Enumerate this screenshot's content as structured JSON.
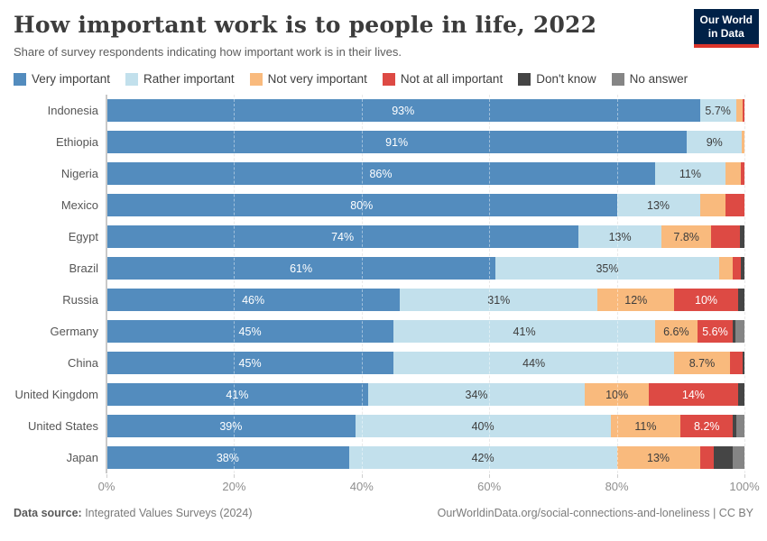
{
  "header": {
    "title": "How important work is to people in life, 2022",
    "subtitle": "Share of survey respondents indicating how important work is in their lives.",
    "logo": {
      "line1": "Our World",
      "line2": "in Data",
      "bg_color": "#002147",
      "accent_color": "#dc352b"
    }
  },
  "legend": {
    "items": [
      {
        "label": "Very important",
        "color": "#538cbe"
      },
      {
        "label": "Rather important",
        "color": "#c2e0ec"
      },
      {
        "label": "Not very important",
        "color": "#f9ba7d"
      },
      {
        "label": "Not at all important",
        "color": "#dd4a44"
      },
      {
        "label": "Don't know",
        "color": "#454545"
      },
      {
        "label": "No answer",
        "color": "#858585"
      }
    ]
  },
  "chart_data": {
    "type": "bar",
    "stacked": true,
    "orientation": "horizontal",
    "unit": "%",
    "xlim": [
      0,
      100
    ],
    "x_ticks": [
      "0%",
      "20%",
      "40%",
      "60%",
      "80%",
      "100%"
    ],
    "grid": "dashed-vertical",
    "legend_position": "top",
    "categories": [
      "Indonesia",
      "Ethiopia",
      "Nigeria",
      "Mexico",
      "Egypt",
      "Brazil",
      "Russia",
      "Germany",
      "China",
      "United Kingdom",
      "United States",
      "Japan"
    ],
    "series": [
      {
        "name": "Very important",
        "color": "#538cbe",
        "label_color": "#ffffff",
        "values": [
          93,
          91,
          86,
          80,
          74,
          61,
          46,
          45,
          45,
          41,
          39,
          38
        ],
        "labels": [
          "93%",
          "91%",
          "86%",
          "80%",
          "74%",
          "61%",
          "46%",
          "45%",
          "45%",
          "41%",
          "39%",
          "38%"
        ]
      },
      {
        "name": "Rather important",
        "color": "#c2e0ec",
        "label_color": "#3d3d3d",
        "values": [
          5.7,
          8.6,
          11,
          13,
          13,
          35,
          31,
          41,
          44,
          34,
          40,
          42
        ],
        "labels": [
          "5.7%",
          "9%",
          "11%",
          "13%",
          "13%",
          "35%",
          "31%",
          "41%",
          "44%",
          "34%",
          "40%",
          "42%"
        ]
      },
      {
        "name": "Not very important",
        "color": "#f9ba7d",
        "label_color": "#3d3d3d",
        "values": [
          1.0,
          0.4,
          2.4,
          4.0,
          7.8,
          2.1,
          12,
          6.6,
          8.7,
          10,
          11,
          13
        ],
        "labels": [
          "",
          "",
          "",
          "",
          "7.8%",
          "",
          "12%",
          "6.6%",
          "8.7%",
          "10%",
          "11%",
          "13%"
        ]
      },
      {
        "name": "Not at all important",
        "color": "#dd4a44",
        "label_color": "#ffffff",
        "values": [
          0.3,
          0,
          0.6,
          3.0,
          4.5,
          1.4,
          10,
          5.6,
          2.0,
          14,
          8.2,
          2.2
        ],
        "labels": [
          "",
          "",
          "",
          "",
          "",
          "",
          "10%",
          "5.6%",
          "",
          "14%",
          "8.2%",
          ""
        ]
      },
      {
        "name": "Don't know",
        "color": "#454545",
        "label_color": "#ffffff",
        "values": [
          0,
          0,
          0,
          0,
          0.7,
          0.5,
          1.0,
          0.4,
          0.3,
          1.0,
          0.6,
          3.0
        ],
        "labels": [
          "",
          "",
          "",
          "",
          "",
          "",
          "",
          "",
          "",
          "",
          "",
          ""
        ]
      },
      {
        "name": "No answer",
        "color": "#858585",
        "label_color": "#ffffff",
        "values": [
          0,
          0,
          0,
          0,
          0,
          0,
          0,
          1.4,
          0,
          0,
          1.2,
          1.8
        ],
        "labels": [
          "",
          "",
          "",
          "",
          "",
          "",
          "",
          "",
          "",
          "",
          "",
          ""
        ]
      }
    ]
  },
  "footer": {
    "source_label": "Data source:",
    "source_text": " Integrated Values Surveys (2024)",
    "citation": "OurWorldinData.org/social-connections-and-loneliness | CC BY"
  }
}
